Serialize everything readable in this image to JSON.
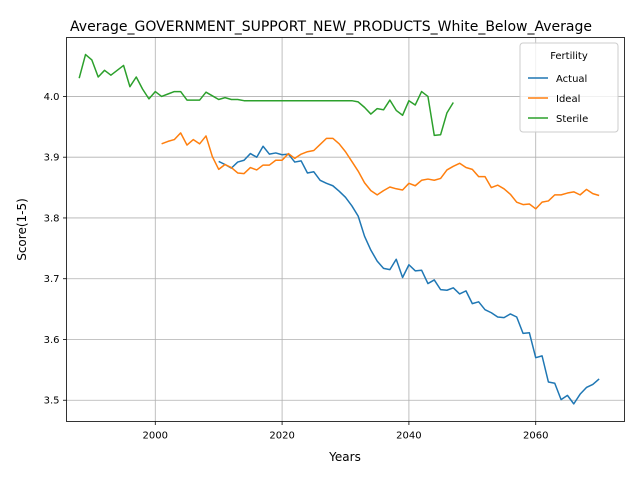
{
  "chart_data": {
    "type": "line",
    "title": "Average_GOVERNMENT_SUPPORT_NEW_PRODUCTS_White_Below_Average",
    "xlabel": "Years",
    "ylabel": "Score(1-5)",
    "xlim": [
      1986,
      2074
    ],
    "ylim": [
      3.465,
      4.097
    ],
    "x_ticks": [
      2000,
      2020,
      2040,
      2060
    ],
    "y_ticks": [
      3.5,
      3.6,
      3.7,
      3.8,
      3.9,
      4.0
    ],
    "x_tick_labels": [
      "2000",
      "2020",
      "2040",
      "2060"
    ],
    "y_tick_labels": [
      "3.5",
      "3.6",
      "3.7",
      "3.8",
      "3.9",
      "4.0"
    ],
    "grid": true,
    "legend": {
      "title": "Fertility",
      "placement": "top-right"
    },
    "series": [
      {
        "name": "Actual",
        "color": "#1f77b4",
        "x": [
          2010,
          2011,
          2012,
          2013,
          2014,
          2015,
          2016,
          2017,
          2018,
          2019,
          2020,
          2021,
          2022,
          2023,
          2024,
          2025,
          2026,
          2027,
          2028,
          2029,
          2030,
          2031,
          2032,
          2033,
          2034,
          2035,
          2036,
          2037,
          2038,
          2039,
          2040,
          2041,
          2042,
          2043,
          2044,
          2045,
          2046,
          2047,
          2048,
          2049,
          2050,
          2051,
          2052,
          2053,
          2054,
          2055,
          2056,
          2057,
          2058,
          2059,
          2060,
          2061,
          2062,
          2063,
          2064,
          2065,
          2066,
          2067,
          2068,
          2069,
          2070
        ],
        "values": [
          3.893,
          3.888,
          3.882,
          3.892,
          3.895,
          3.906,
          3.9,
          3.918,
          3.905,
          3.907,
          3.904,
          3.905,
          3.892,
          3.894,
          3.874,
          3.876,
          3.862,
          3.857,
          3.853,
          3.844,
          3.834,
          3.82,
          3.803,
          3.77,
          3.747,
          3.729,
          3.717,
          3.715,
          3.732,
          3.702,
          3.723,
          3.713,
          3.714,
          3.692,
          3.698,
          3.682,
          3.681,
          3.685,
          3.675,
          3.68,
          3.659,
          3.662,
          3.649,
          3.644,
          3.637,
          3.636,
          3.642,
          3.637,
          3.61,
          3.611,
          3.57,
          3.573,
          3.53,
          3.528,
          3.501,
          3.508,
          3.494,
          3.51,
          3.521,
          3.526,
          3.535
        ]
      },
      {
        "name": "Ideal",
        "color": "#ff7f0e",
        "x": [
          2001,
          2002,
          2003,
          2004,
          2005,
          2006,
          2007,
          2008,
          2009,
          2010,
          2011,
          2012,
          2013,
          2014,
          2015,
          2016,
          2017,
          2018,
          2019,
          2020,
          2021,
          2022,
          2023,
          2024,
          2025,
          2026,
          2027,
          2028,
          2029,
          2030,
          2031,
          2032,
          2033,
          2034,
          2035,
          2036,
          2037,
          2038,
          2039,
          2040,
          2041,
          2042,
          2043,
          2044,
          2045,
          2046,
          2047,
          2048,
          2049,
          2050,
          2051,
          2052,
          2053,
          2054,
          2055,
          2056,
          2057,
          2058,
          2059,
          2060,
          2061,
          2062,
          2063,
          2064,
          2065,
          2066,
          2067,
          2068,
          2069,
          2070
        ],
        "values": [
          3.922,
          3.926,
          3.929,
          3.94,
          3.92,
          3.929,
          3.922,
          3.935,
          3.901,
          3.88,
          3.888,
          3.883,
          3.874,
          3.873,
          3.883,
          3.879,
          3.887,
          3.887,
          3.895,
          3.895,
          3.906,
          3.898,
          3.905,
          3.909,
          3.911,
          3.921,
          3.931,
          3.931,
          3.922,
          3.909,
          3.893,
          3.877,
          3.858,
          3.845,
          3.838,
          3.845,
          3.851,
          3.848,
          3.846,
          3.857,
          3.853,
          3.862,
          3.864,
          3.862,
          3.865,
          3.879,
          3.885,
          3.89,
          3.883,
          3.88,
          3.868,
          3.868,
          3.85,
          3.854,
          3.848,
          3.839,
          3.826,
          3.822,
          3.823,
          3.815,
          3.826,
          3.828,
          3.838,
          3.838,
          3.841,
          3.843,
          3.838,
          3.847,
          3.84,
          3.837
        ]
      },
      {
        "name": "Sterile",
        "color": "#2ca02c",
        "x": [
          1988,
          1989,
          1990,
          1991,
          1992,
          1993,
          1994,
          1995,
          1996,
          1997,
          1998,
          1999,
          2000,
          2001,
          2002,
          2003,
          2004,
          2005,
          2006,
          2007,
          2008,
          2009,
          2010,
          2011,
          2012,
          2013,
          2014,
          2015,
          2016,
          2017,
          2018,
          2019,
          2020,
          2021,
          2022,
          2023,
          2024,
          2025,
          2026,
          2027,
          2028,
          2029,
          2030,
          2031,
          2032,
          2033,
          2034,
          2035,
          2036,
          2037,
          2038,
          2039,
          2040,
          2041,
          2042,
          2043,
          2044,
          2045,
          2046,
          2047
        ],
        "values": [
          4.03,
          4.069,
          4.06,
          4.032,
          4.043,
          4.035,
          4.043,
          4.051,
          4.016,
          4.032,
          4.012,
          3.996,
          4.008,
          4.0,
          4.004,
          4.008,
          4.008,
          3.994,
          3.994,
          3.994,
          4.007,
          4.001,
          3.995,
          3.998,
          3.995,
          3.995,
          3.993,
          3.993,
          3.993,
          3.993,
          3.993,
          3.993,
          3.993,
          3.993,
          3.993,
          3.993,
          3.993,
          3.993,
          3.993,
          3.993,
          3.993,
          3.993,
          3.993,
          3.993,
          3.991,
          3.982,
          3.971,
          3.98,
          3.978,
          3.994,
          3.977,
          3.969,
          3.993,
          3.986,
          4.008,
          4.0,
          3.936,
          3.937,
          3.973,
          3.99
        ]
      }
    ]
  }
}
